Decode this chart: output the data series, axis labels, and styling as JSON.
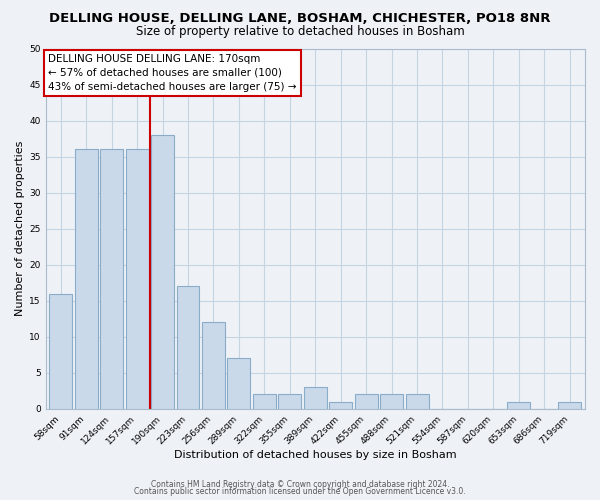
{
  "title": "DELLING HOUSE, DELLING LANE, BOSHAM, CHICHESTER, PO18 8NR",
  "subtitle": "Size of property relative to detached houses in Bosham",
  "xlabel": "Distribution of detached houses by size in Bosham",
  "ylabel": "Number of detached properties",
  "bar_labels": [
    "58sqm",
    "91sqm",
    "124sqm",
    "157sqm",
    "190sqm",
    "223sqm",
    "256sqm",
    "289sqm",
    "322sqm",
    "355sqm",
    "389sqm",
    "422sqm",
    "455sqm",
    "488sqm",
    "521sqm",
    "554sqm",
    "587sqm",
    "620sqm",
    "653sqm",
    "686sqm",
    "719sqm"
  ],
  "bar_values": [
    16,
    36,
    36,
    36,
    38,
    17,
    12,
    7,
    2,
    2,
    3,
    1,
    2,
    2,
    2,
    0,
    0,
    0,
    1,
    0,
    1
  ],
  "bar_color": "#c9d9ea",
  "bar_edge_color": "#8aacc8",
  "vline_color": "#cc0000",
  "vline_x": 3.5,
  "ylim": [
    0,
    50
  ],
  "annotation_text": "DELLING HOUSE DELLING LANE: 170sqm\n← 57% of detached houses are smaller (100)\n43% of semi-detached houses are larger (75) →",
  "annotation_box_facecolor": "#ffffff",
  "annotation_box_edgecolor": "#cc0000",
  "footer_line1": "Contains HM Land Registry data © Crown copyright and database right 2024.",
  "footer_line2": "Contains public sector information licensed under the Open Government Licence v3.0.",
  "background_color": "#eef2f7",
  "grid_color": "#c5d4e3",
  "title_fontsize": 9.5,
  "subtitle_fontsize": 8.5,
  "tick_fontsize": 6.5,
  "ylabel_fontsize": 8,
  "xlabel_fontsize": 8,
  "footer_fontsize": 5.5,
  "annotation_fontsize": 7.5
}
